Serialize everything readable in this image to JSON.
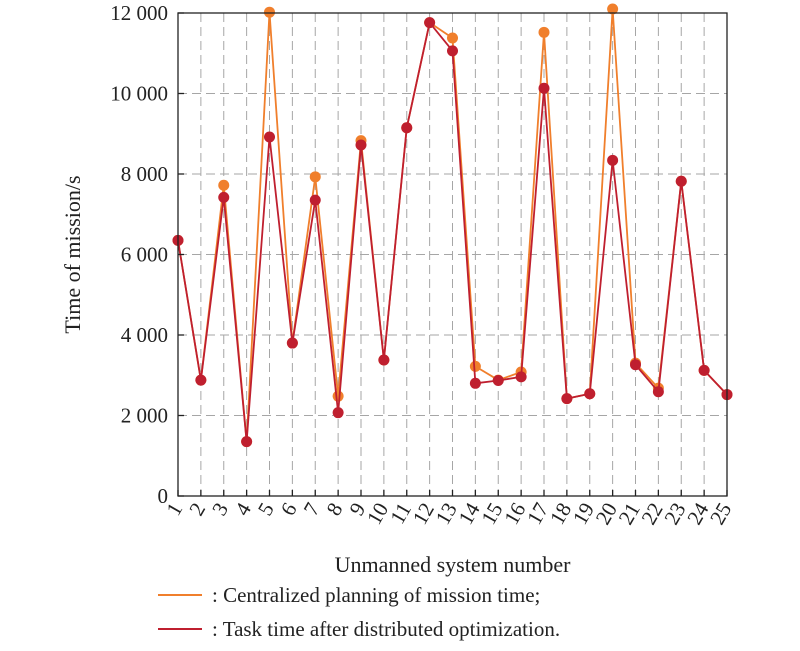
{
  "chart_data": {
    "type": "line",
    "xlabel": "Unmanned system number",
    "ylabel": "Time of mission/s",
    "x": [
      1,
      2,
      3,
      4,
      5,
      6,
      7,
      8,
      9,
      10,
      11,
      12,
      13,
      14,
      15,
      16,
      17,
      18,
      19,
      20,
      21,
      22,
      23,
      24,
      25
    ],
    "ylim": [
      0,
      12000
    ],
    "yticks": [
      0,
      2000,
      4000,
      6000,
      8000,
      10000,
      12000
    ],
    "ytick_labels": [
      "0",
      "2 000",
      "4 000",
      "6 000",
      "8 000",
      "10 000",
      "12 000"
    ],
    "grid": true,
    "legend_position": "bottom",
    "series": [
      {
        "name": ": Centralized planning of mission time;",
        "color": "#f07f2c",
        "values": [
          6350,
          2880,
          7720,
          1350,
          12020,
          3800,
          7930,
          2480,
          8830,
          3380,
          9150,
          11760,
          11380,
          3220,
          2880,
          3080,
          11520,
          2420,
          2540,
          12100,
          3300,
          2680,
          7820,
          3120,
          2520
        ]
      },
      {
        "name": ": Task time after distributed optimization.",
        "color": "#bf1f2f",
        "values": [
          6350,
          2880,
          7420,
          1350,
          8920,
          3800,
          7350,
          2070,
          8720,
          3380,
          9150,
          11760,
          11060,
          2800,
          2870,
          2960,
          10130,
          2420,
          2540,
          8340,
          3260,
          2590,
          7820,
          3120,
          2520
        ]
      }
    ]
  }
}
